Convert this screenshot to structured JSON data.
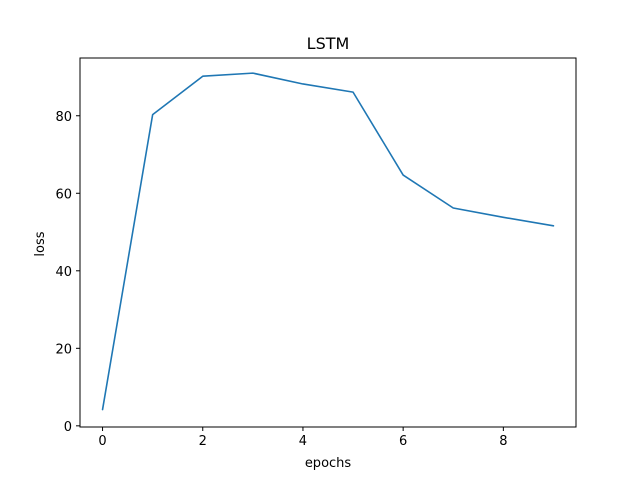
{
  "chart_data": {
    "type": "line",
    "title": "LSTM",
    "xlabel": "epochs",
    "ylabel": "loss",
    "xlim": [
      -0.45,
      9.45
    ],
    "ylim": [
      -0.3,
      94.9
    ],
    "xticks": [
      0,
      2,
      4,
      6,
      8
    ],
    "yticks": [
      0,
      20,
      40,
      60,
      80
    ],
    "grid": false,
    "series": [
      {
        "color": "#1f77b4",
        "x": [
          0,
          1,
          2,
          3,
          4,
          5,
          6,
          7,
          8,
          9
        ],
        "y": [
          4.2,
          80.3,
          90.2,
          91.0,
          88.2,
          86.1,
          64.7,
          56.2,
          53.8,
          51.6
        ]
      }
    ]
  }
}
